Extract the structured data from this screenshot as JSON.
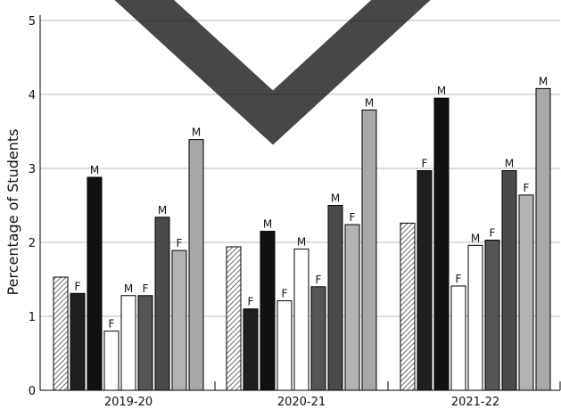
{
  "chart_data": {
    "type": "bar",
    "title": "",
    "xlabel": "",
    "ylabel": "Percentage of Students",
    "ylim": [
      0,
      5
    ],
    "yticks": [
      "0",
      "1",
      "2",
      "3",
      "4",
      "5"
    ],
    "grid": "horizontal",
    "categories": [
      "2019-20",
      "2020-21",
      "2021-22"
    ],
    "series": [
      {
        "style": "hatched",
        "fill": "#ffffff",
        "values": [
          1.53,
          1.94,
          2.26
        ],
        "labels": [
          "",
          "",
          ""
        ]
      },
      {
        "style": "solid",
        "fill": "#1f1f1f",
        "values": [
          1.31,
          1.1,
          2.97
        ],
        "labels": [
          "F",
          "F",
          "F"
        ]
      },
      {
        "style": "solid",
        "fill": "#111111",
        "values": [
          2.88,
          2.15,
          3.95
        ],
        "labels": [
          "M",
          "M",
          "M"
        ]
      },
      {
        "style": "solid",
        "fill": "#ffffff",
        "values": [
          0.8,
          1.21,
          1.41
        ],
        "labels": [
          "F",
          "F",
          "F"
        ]
      },
      {
        "style": "solid",
        "fill": "#ffffff",
        "values": [
          1.28,
          1.91,
          1.96
        ],
        "labels": [
          "M",
          "M",
          "M"
        ]
      },
      {
        "style": "solid",
        "fill": "#555555",
        "values": [
          1.28,
          1.4,
          2.03
        ],
        "labels": [
          "F",
          "F",
          "F"
        ]
      },
      {
        "style": "solid",
        "fill": "#4a4a4a",
        "values": [
          2.34,
          2.5,
          2.97
        ],
        "labels": [
          "M",
          "M",
          "M"
        ]
      },
      {
        "style": "solid",
        "fill": "#b3b3b3",
        "values": [
          1.89,
          2.24,
          2.64
        ],
        "labels": [
          "F",
          "F",
          "F"
        ]
      },
      {
        "style": "solid",
        "fill": "#a8a8a8",
        "values": [
          3.39,
          3.79,
          4.08
        ],
        "labels": [
          "M",
          "M",
          "M"
        ]
      }
    ]
  }
}
